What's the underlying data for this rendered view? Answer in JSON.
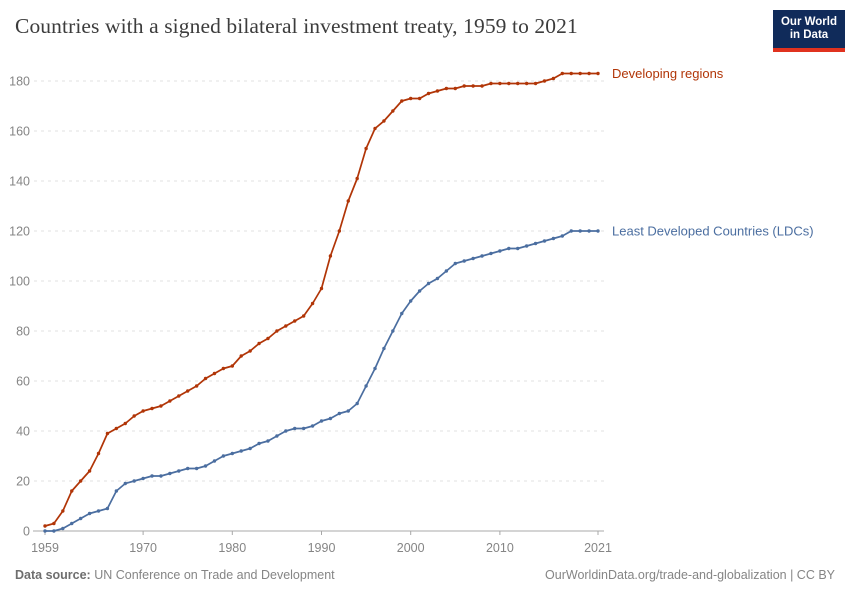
{
  "header": {
    "title": "Countries with a signed bilateral investment treaty, 1959 to 2021",
    "logo_line1": "Our World",
    "logo_line2": "in Data"
  },
  "footer": {
    "source_label": "Data source:",
    "source_value": " UN Conference on Trade and Development",
    "credit": "OurWorldinData.org/trade-and-globalization | CC BY"
  },
  "colors": {
    "developing_regions": "#B13507",
    "ldcs": "#4B6EA0",
    "gridline": "#e2e2e2",
    "axis": "#a8a8a8",
    "tick_label": "#858585",
    "logo_bg": "#102b5a",
    "logo_accent": "#e0321f"
  },
  "chart_data": {
    "type": "line",
    "title": "Countries with a signed bilateral investment treaty, 1959 to 2021",
    "xlabel": "",
    "ylabel": "",
    "grid": "horizontal-dashed",
    "legend_position": "end-of-line-labels",
    "markers": true,
    "xlim": [
      1959,
      2021
    ],
    "ylim": [
      0,
      180
    ],
    "x_ticks": [
      1959,
      1970,
      1980,
      1990,
      2000,
      2010,
      2021
    ],
    "y_ticks": [
      0,
      20,
      40,
      60,
      80,
      100,
      120,
      140,
      160,
      180
    ],
    "x": [
      1959,
      1960,
      1961,
      1962,
      1963,
      1964,
      1965,
      1966,
      1967,
      1968,
      1969,
      1970,
      1971,
      1972,
      1973,
      1974,
      1975,
      1976,
      1977,
      1978,
      1979,
      1980,
      1981,
      1982,
      1983,
      1984,
      1985,
      1986,
      1987,
      1988,
      1989,
      1990,
      1991,
      1992,
      1993,
      1994,
      1995,
      1996,
      1997,
      1998,
      1999,
      2000,
      2001,
      2002,
      2003,
      2004,
      2005,
      2006,
      2007,
      2008,
      2009,
      2010,
      2011,
      2012,
      2013,
      2014,
      2015,
      2016,
      2017,
      2018,
      2019,
      2020,
      2021
    ],
    "series": [
      {
        "name": "Developing regions",
        "color": "#B13507",
        "values": [
          2,
          3,
          8,
          16,
          20,
          24,
          31,
          39,
          41,
          43,
          46,
          48,
          49,
          50,
          52,
          54,
          56,
          58,
          61,
          63,
          65,
          66,
          70,
          72,
          75,
          77,
          80,
          82,
          84,
          86,
          91,
          97,
          110,
          120,
          132,
          141,
          153,
          161,
          164,
          168,
          172,
          173,
          173,
          175,
          176,
          177,
          177,
          178,
          178,
          178,
          179,
          179,
          179,
          179,
          179,
          179,
          180,
          181,
          183,
          183,
          183,
          183,
          183
        ]
      },
      {
        "name": "Least Developed Countries (LDCs)",
        "color": "#4B6EA0",
        "values": [
          0,
          0,
          1,
          3,
          5,
          7,
          8,
          9,
          16,
          19,
          20,
          21,
          22,
          22,
          23,
          24,
          25,
          25,
          26,
          28,
          30,
          31,
          32,
          33,
          35,
          36,
          38,
          40,
          41,
          41,
          42,
          44,
          45,
          47,
          48,
          51,
          58,
          65,
          73,
          80,
          87,
          92,
          96,
          99,
          101,
          104,
          107,
          108,
          109,
          110,
          111,
          112,
          113,
          113,
          114,
          115,
          116,
          117,
          118,
          120,
          120,
          120,
          120
        ]
      }
    ]
  }
}
